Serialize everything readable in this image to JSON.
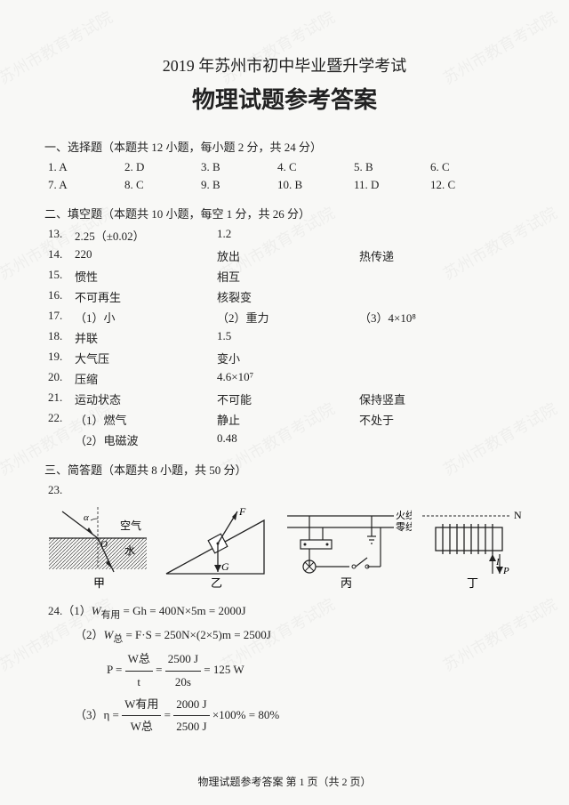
{
  "title_line1": "2019 年苏州市初中毕业暨升学考试",
  "title_line2": "物理试题参考答案",
  "watermark_text": "苏州市教育考试院",
  "section1": {
    "head": "一、选择题（本题共 12 小题，每小题 2 分，共 24 分）",
    "answers": [
      {
        "n": "1.",
        "a": "A"
      },
      {
        "n": "2.",
        "a": "D"
      },
      {
        "n": "3.",
        "a": "B"
      },
      {
        "n": "4.",
        "a": "C"
      },
      {
        "n": "5.",
        "a": "B"
      },
      {
        "n": "6.",
        "a": "C"
      },
      {
        "n": "7.",
        "a": "A"
      },
      {
        "n": "8.",
        "a": "C"
      },
      {
        "n": "9.",
        "a": "B"
      },
      {
        "n": "10.",
        "a": "B"
      },
      {
        "n": "11.",
        "a": "D"
      },
      {
        "n": "12.",
        "a": "C"
      }
    ]
  },
  "section2": {
    "head": "二、填空题（本题共 10 小题，每空 1 分，共 26 分）",
    "rows": [
      {
        "n": "13.",
        "c1": "2.25（±0.02）",
        "c2": "1.2",
        "c3": ""
      },
      {
        "n": "14.",
        "c1": "220",
        "c2": "放出",
        "c3": "热传递"
      },
      {
        "n": "15.",
        "c1": "惯性",
        "c2": "相互",
        "c3": ""
      },
      {
        "n": "16.",
        "c1": "不可再生",
        "c2": "核裂变",
        "c3": ""
      },
      {
        "n": "17.",
        "c1": "（1）小",
        "c2": "（2）重力",
        "c3": "（3）4×10⁸"
      },
      {
        "n": "18.",
        "c1": "并联",
        "c2": "1.5",
        "c3": ""
      },
      {
        "n": "19.",
        "c1": "大气压",
        "c2": "变小",
        "c3": ""
      },
      {
        "n": "20.",
        "c1": "压缩",
        "c2": "4.6×10⁷",
        "c3": ""
      },
      {
        "n": "21.",
        "c1": "运动状态",
        "c2": "不可能",
        "c3": "保持竖直"
      },
      {
        "n": "22.",
        "c1": "（1）燃气",
        "c2": "静止",
        "c3": "不处于"
      },
      {
        "n": "",
        "c1": "（2）电磁波",
        "c2": "0.48",
        "c3": ""
      }
    ]
  },
  "section3": {
    "head": "三、简答题（本题共 8 小题，共 50 分）",
    "q23_num": "23.",
    "fig_labels": {
      "a": "甲",
      "b": "乙",
      "c": "丙",
      "d": "丁",
      "air": "空气",
      "water": "水",
      "F": "F",
      "G": "G",
      "alpha": "α",
      "O": "O",
      "huo": "火线",
      "ling": "零线",
      "N": "N",
      "I": "I",
      "P": "P"
    }
  },
  "q24": {
    "l1a": "24.（1）",
    "l1b": "W",
    "l1sub": "有用",
    "l1c": " = Gh = 400N×5m = 2000J",
    "l2a": "（2）",
    "l2b": "W",
    "l2sub": "总",
    "l2c": " = F·S = 250N×(2×5)m = 2500J",
    "l3a": "P = ",
    "l3n": "W总",
    "l3d": "t",
    "l3eq": " = ",
    "l3n2": "2500 J",
    "l3d2": "20s",
    "l3r": " = 125 W",
    "l4a": "（3）η = ",
    "l4n": "W有用",
    "l4d": "W总",
    "l4eq": " = ",
    "l4n2": "2000 J",
    "l4d2": "2500 J",
    "l4r": " ×100% = 80%"
  },
  "footer": "物理试题参考答案  第 1 页（共 2 页）"
}
